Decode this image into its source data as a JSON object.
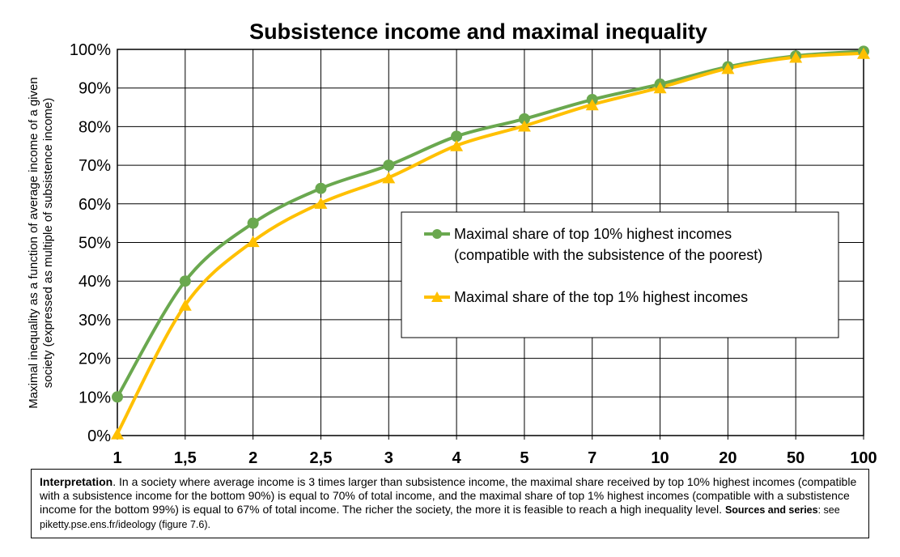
{
  "chart_data": {
    "type": "line",
    "title": "Subsistence income and maximal inequality",
    "ylabel_lines": [
      "Maximal inequality as a function of average income of a given",
      "society (expressed as multiple of subsistence income)"
    ],
    "xlabel": "",
    "categories": [
      "1",
      "1,5",
      "2",
      "2,5",
      "3",
      "4",
      "5",
      "7",
      "10",
      "20",
      "50",
      "100"
    ],
    "y_ticks": [
      "0%",
      "10%",
      "20%",
      "30%",
      "40%",
      "50%",
      "60%",
      "70%",
      "80%",
      "90%",
      "100%"
    ],
    "ylim": [
      0,
      100
    ],
    "grid": true,
    "legend_position": "center-right",
    "series": [
      {
        "name_lines": [
          "Maximal share of top 10% highest incomes",
          "(compatible with the subsistence of the poorest)"
        ],
        "marker": "circle",
        "color": "#6aa84f",
        "values": [
          10,
          40,
          55,
          64,
          70,
          77.5,
          82,
          87,
          91,
          95.5,
          98.3,
          99.5
        ]
      },
      {
        "name_lines": [
          "Maximal share of the top 1% highest incomes"
        ],
        "marker": "triangle",
        "color": "#ffc000",
        "values": [
          0.5,
          33.8,
          50.3,
          60.2,
          66.8,
          75.1,
          80.2,
          85.7,
          90.1,
          95.1,
          98,
          99
        ]
      }
    ]
  },
  "note": {
    "label": "Interpretation",
    "text": ". In a society where average income is 3 times larger than subsistence income, the maximal share received by top 10% highest incomes (compatible with a subsistence income for the bottom 90%) is equal to 70% of total income, and the maximal share of top 1% highest incomes (compatible with a substistence income for the bottom 99%) is equal to 67% of total income. The richer the society, the more it is feasible to reach a high inequality level.  ",
    "sources_label": "Sources and series",
    "sources_text": ": see piketty.pse.ens.fr/ideology (figure 7.6)."
  }
}
